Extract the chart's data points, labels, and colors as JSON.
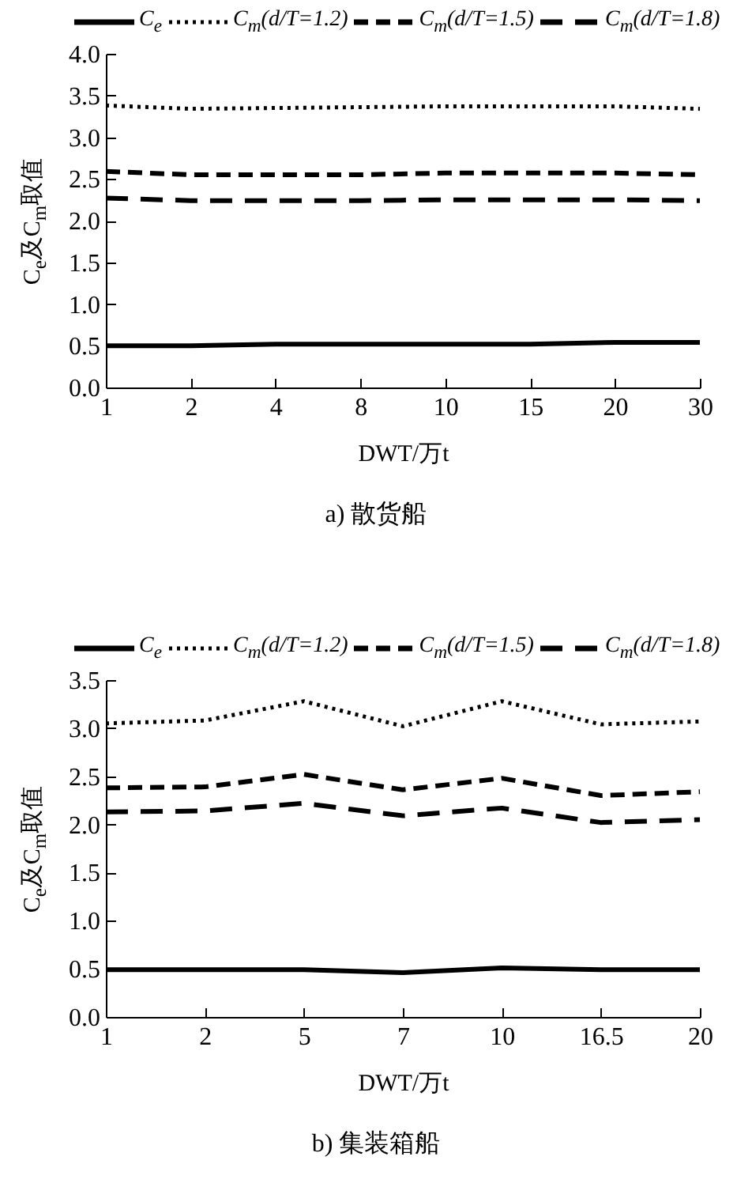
{
  "chart_data": [
    {
      "type": "line",
      "title": "a) 散货船",
      "xlabel": "DWT/万t",
      "ylabel": "C$_{e}$及C$_{m}$取值",
      "categories": [
        "1",
        "2",
        "4",
        "8",
        "10",
        "15",
        "20",
        "30"
      ],
      "ylim": [
        0,
        4
      ],
      "yticks": [
        {
          "value": 0,
          "label": "0.0"
        },
        {
          "value": 0.5,
          "label": "0.5"
        },
        {
          "value": 1,
          "label": "1.0"
        },
        {
          "value": 1.5,
          "label": "1.5"
        },
        {
          "value": 2,
          "label": "2.0"
        },
        {
          "value": 2.5,
          "label": "2.5"
        },
        {
          "value": 3,
          "label": "3.0"
        },
        {
          "value": 3.5,
          "label": "3.5"
        },
        {
          "value": 4,
          "label": "4.0"
        }
      ],
      "legend": "top",
      "marker": "none",
      "series": [
        {
          "name": "C$_{e}$",
          "color": "#000000",
          "line_style": "solid",
          "values": [
            0.5,
            0.5,
            0.52,
            0.52,
            0.52,
            0.52,
            0.54,
            0.54
          ]
        },
        {
          "name": "C$_{m}$(d/T=1.2)",
          "color": "#000000",
          "line_style": "dotted",
          "values": [
            3.38,
            3.34,
            3.35,
            3.36,
            3.37,
            3.37,
            3.37,
            3.34
          ]
        },
        {
          "name": "C$_{m}$(d/T=1.5)",
          "color": "#000000",
          "line_style": "dashed",
          "values": [
            2.59,
            2.55,
            2.55,
            2.55,
            2.57,
            2.57,
            2.57,
            2.55
          ]
        },
        {
          "name": "C$_{m}$(d/T=1.8)",
          "color": "#000000",
          "line_style": "dashed",
          "values": [
            2.27,
            2.24,
            2.24,
            2.24,
            2.25,
            2.25,
            2.25,
            2.24
          ]
        }
      ]
    },
    {
      "type": "line",
      "title": "b) 集装箱船",
      "xlabel": "DWT/万t",
      "ylabel": "C$_{e}$及C$_{m}$取值",
      "categories": [
        "1",
        "2",
        "5",
        "7",
        "10",
        "16.5",
        "20"
      ],
      "ylim": [
        0,
        3.5
      ],
      "yticks": [
        {
          "value": 0,
          "label": "0.0"
        },
        {
          "value": 0.5,
          "label": "0.5"
        },
        {
          "value": 1,
          "label": "1.0"
        },
        {
          "value": 1.5,
          "label": "1.5"
        },
        {
          "value": 2,
          "label": "2.0"
        },
        {
          "value": 2.5,
          "label": "2.5"
        },
        {
          "value": 3,
          "label": "3.0"
        },
        {
          "value": 3.5,
          "label": "3.5"
        }
      ],
      "legend": "top",
      "marker": "none",
      "series": [
        {
          "name": "C$_{e}$",
          "color": "#000000",
          "line_style": "solid",
          "values": [
            0.49,
            0.49,
            0.49,
            0.46,
            0.51,
            0.49,
            0.49
          ]
        },
        {
          "name": "C$_{m}$(d/T=1.2)",
          "color": "#000000",
          "line_style": "dotted",
          "values": [
            3.05,
            3.08,
            3.28,
            3.02,
            3.28,
            3.04,
            3.07
          ]
        },
        {
          "name": "C$_{m}$(d/T=1.5)",
          "color": "#000000",
          "line_style": "dashed",
          "values": [
            2.38,
            2.39,
            2.52,
            2.36,
            2.48,
            2.3,
            2.34
          ]
        },
        {
          "name": "C$_{m}$(d/T=1.8)",
          "color": "#000000",
          "line_style": "dashed",
          "values": [
            2.13,
            2.14,
            2.22,
            2.09,
            2.17,
            2.02,
            2.05
          ]
        }
      ]
    }
  ]
}
